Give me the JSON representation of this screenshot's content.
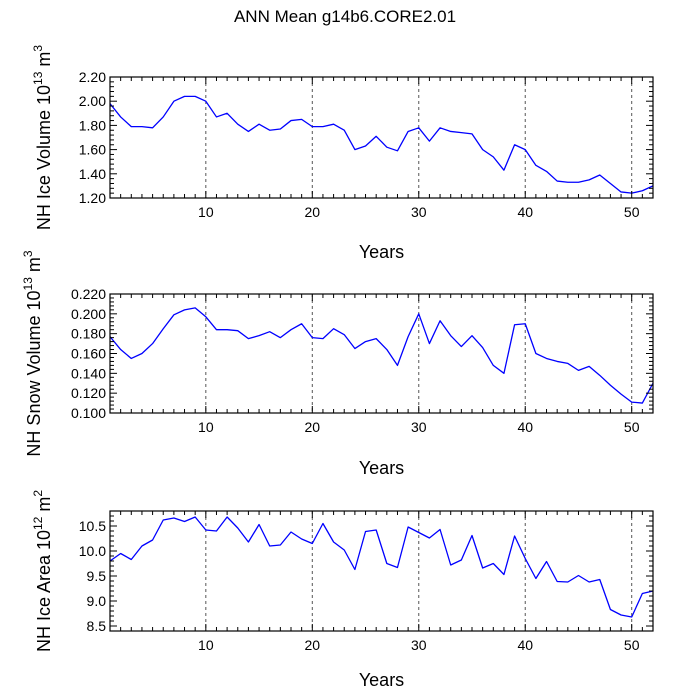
{
  "title": "ANN Mean g14b6.CORE2.01",
  "colors": {
    "line": "#0000ff",
    "axis": "#000000",
    "grid": "#555555"
  },
  "chart_data": [
    {
      "type": "line",
      "xlabel": "Years",
      "ylabel": "NH Ice Volume 10",
      "ylabel_exp": "13",
      "ylabel_unit": "m",
      "ylabel_unit_exp": "3",
      "xlim": [
        1,
        52
      ],
      "ylim": [
        1.2,
        2.2
      ],
      "xticks": [
        10,
        20,
        30,
        40,
        50
      ],
      "xtick_labels": [
        "10",
        "20",
        "30",
        "40",
        "50"
      ],
      "yticks": [
        1.2,
        1.4,
        1.6,
        1.8,
        2.0,
        2.2
      ],
      "ytick_labels": [
        "1.20",
        "1.40",
        "1.60",
        "1.80",
        "2.00",
        "2.20"
      ],
      "x": [
        1,
        2,
        3,
        4,
        5,
        6,
        7,
        8,
        9,
        10,
        11,
        12,
        13,
        14,
        15,
        16,
        17,
        18,
        19,
        20,
        21,
        22,
        23,
        24,
        25,
        26,
        27,
        28,
        29,
        30,
        31,
        32,
        33,
        34,
        35,
        36,
        37,
        38,
        39,
        40,
        41,
        42,
        43,
        44,
        45,
        46,
        47,
        48,
        49,
        50,
        51,
        52
      ],
      "values": [
        1.98,
        1.87,
        1.79,
        1.79,
        1.78,
        1.87,
        2.0,
        2.04,
        2.04,
        2.0,
        1.87,
        1.9,
        1.81,
        1.75,
        1.81,
        1.76,
        1.77,
        1.84,
        1.85,
        1.79,
        1.79,
        1.81,
        1.76,
        1.6,
        1.63,
        1.71,
        1.62,
        1.59,
        1.75,
        1.78,
        1.67,
        1.78,
        1.75,
        1.74,
        1.73,
        1.6,
        1.54,
        1.43,
        1.64,
        1.6,
        1.47,
        1.42,
        1.34,
        1.33,
        1.33,
        1.35,
        1.39,
        1.32,
        1.25,
        1.24,
        1.26,
        1.3
      ]
    },
    {
      "type": "line",
      "xlabel": "Years",
      "ylabel": "NH Snow Volume 10",
      "ylabel_exp": "13",
      "ylabel_unit": "m",
      "ylabel_unit_exp": "3",
      "xlim": [
        1,
        52
      ],
      "ylim": [
        0.1,
        0.22
      ],
      "xticks": [
        10,
        20,
        30,
        40,
        50
      ],
      "xtick_labels": [
        "10",
        "20",
        "30",
        "40",
        "50"
      ],
      "yticks": [
        0.1,
        0.12,
        0.14,
        0.16,
        0.18,
        0.2,
        0.22
      ],
      "ytick_labels": [
        "0.100",
        "0.120",
        "0.140",
        "0.160",
        "0.180",
        "0.200",
        "0.220"
      ],
      "x": [
        1,
        2,
        3,
        4,
        5,
        6,
        7,
        8,
        9,
        10,
        11,
        12,
        13,
        14,
        15,
        16,
        17,
        18,
        19,
        20,
        21,
        22,
        23,
        24,
        25,
        26,
        27,
        28,
        29,
        30,
        31,
        32,
        33,
        34,
        35,
        36,
        37,
        38,
        39,
        40,
        41,
        42,
        43,
        44,
        45,
        46,
        47,
        48,
        49,
        50,
        51,
        52
      ],
      "values": [
        0.177,
        0.164,
        0.155,
        0.16,
        0.17,
        0.185,
        0.199,
        0.204,
        0.206,
        0.197,
        0.184,
        0.184,
        0.183,
        0.175,
        0.178,
        0.182,
        0.176,
        0.184,
        0.19,
        0.176,
        0.175,
        0.185,
        0.179,
        0.165,
        0.172,
        0.175,
        0.164,
        0.148,
        0.177,
        0.2,
        0.17,
        0.193,
        0.178,
        0.167,
        0.178,
        0.166,
        0.148,
        0.14,
        0.189,
        0.19,
        0.16,
        0.155,
        0.152,
        0.15,
        0.143,
        0.147,
        0.138,
        0.128,
        0.119,
        0.111,
        0.11,
        0.13
      ]
    },
    {
      "type": "line",
      "xlabel": "Years",
      "ylabel": "NH Ice Area 10",
      "ylabel_exp": "12",
      "ylabel_unit": "m",
      "ylabel_unit_exp": "2",
      "xlim": [
        1,
        52
      ],
      "ylim": [
        8.4,
        10.8
      ],
      "xticks": [
        10,
        20,
        30,
        40,
        50
      ],
      "xtick_labels": [
        "10",
        "20",
        "30",
        "40",
        "50"
      ],
      "yticks": [
        8.5,
        9.0,
        9.5,
        10.0,
        10.5
      ],
      "ytick_labels": [
        "8.5",
        "9.0",
        "9.5",
        "10.0",
        "10.5"
      ],
      "x": [
        1,
        2,
        3,
        4,
        5,
        6,
        7,
        8,
        9,
        10,
        11,
        12,
        13,
        14,
        15,
        16,
        17,
        18,
        19,
        20,
        21,
        22,
        23,
        24,
        25,
        26,
        27,
        28,
        29,
        30,
        31,
        32,
        33,
        34,
        35,
        36,
        37,
        38,
        39,
        40,
        41,
        42,
        43,
        44,
        45,
        46,
        47,
        48,
        49,
        50,
        51,
        52
      ],
      "values": [
        9.8,
        9.95,
        9.83,
        10.1,
        10.22,
        10.62,
        10.66,
        10.59,
        10.68,
        10.42,
        10.4,
        10.68,
        10.46,
        10.18,
        10.53,
        10.1,
        10.12,
        10.38,
        10.24,
        10.15,
        10.55,
        10.18,
        10.02,
        9.63,
        10.39,
        10.42,
        9.75,
        9.67,
        10.48,
        10.37,
        10.26,
        10.43,
        9.72,
        9.82,
        10.31,
        9.66,
        9.75,
        9.53,
        10.3,
        9.85,
        9.45,
        9.79,
        9.39,
        9.38,
        9.51,
        9.38,
        9.43,
        8.83,
        8.72,
        8.68,
        9.15,
        9.2
      ]
    }
  ]
}
